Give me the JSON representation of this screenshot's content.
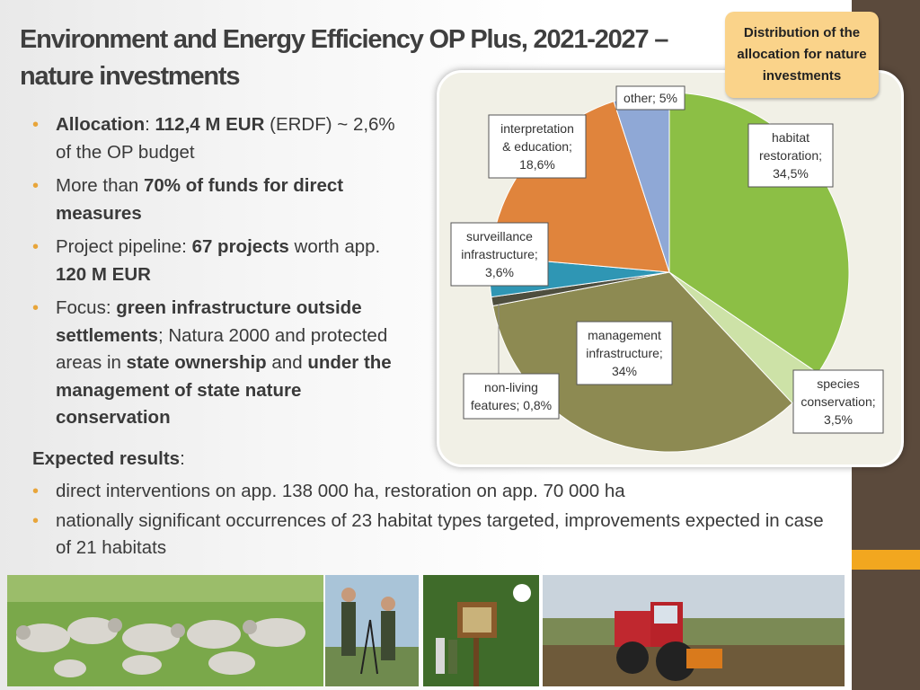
{
  "slide": {
    "title": "Environment and Energy Efficiency OP Plus, 2021-2027 – nature investments",
    "callout": "Distribution of the allocation for nature investments"
  },
  "bullets": {
    "b1": {
      "label": "Allocation",
      "sep": ": ",
      "value": "112,4 M EUR",
      "rest": " (ERDF) ~ 2,6% of the OP budget"
    },
    "b2": {
      "pre": "More than ",
      "bold": "70% of funds for direct measures"
    },
    "b3": {
      "pre": "Project pipeline: ",
      "bold1": "67 projects",
      "mid": " worth app. ",
      "bold2": "120 M EUR"
    },
    "b4": {
      "pre": "Focus: ",
      "bold1": "green infrastructure outside settlements",
      "mid1": "; Natura 2000 and protected areas in ",
      "bold2": "state ownership",
      "mid2": " and ",
      "bold3": "under the management of state nature conservation"
    }
  },
  "results": {
    "heading": "Expected results",
    "colon": ":",
    "items": [
      "direct interventions on app. 138 000 ha, restoration on app. 70 000 ha",
      "nationally significant occurrences of 23 habitat types targeted, improvements expected in case of 21 habitats"
    ]
  },
  "chart_data": {
    "type": "pie",
    "title": "",
    "slices": [
      {
        "label": "habitat restoration",
        "value": 34.5,
        "display": "34,5%",
        "color": "#8cbf45",
        "label_lines": [
          "habitat",
          "restoration;",
          "34,5%"
        ]
      },
      {
        "label": "species conservation",
        "value": 3.5,
        "display": "3,5%",
        "color": "#cde2a7",
        "label_lines": [
          "species",
          "conservation;",
          "3,5%"
        ]
      },
      {
        "label": "management infrastructure",
        "value": 34,
        "display": "34%",
        "color": "#8d8a52",
        "label_lines": [
          "management",
          "infrastructure;",
          "34%"
        ]
      },
      {
        "label": "non-living features",
        "value": 0.8,
        "display": "0,8%",
        "color": "#4e4e3e",
        "label_lines": [
          "non-living",
          "features; 0,8%"
        ]
      },
      {
        "label": "surveillance infrastructure",
        "value": 3.6,
        "display": "3,6%",
        "color": "#2f96b4",
        "label_lines": [
          "surveillance",
          "infrastructure;",
          "3,6%"
        ]
      },
      {
        "label": "interpretation & education",
        "value": 18.6,
        "display": "18,6%",
        "color": "#e0843c",
        "label_lines": [
          "interpretation",
          "& education;",
          "18,6%"
        ]
      },
      {
        "label": "other",
        "value": 5,
        "display": "5%",
        "color": "#8fa8d6",
        "label_lines": [
          "other; 5%"
        ]
      }
    ]
  }
}
